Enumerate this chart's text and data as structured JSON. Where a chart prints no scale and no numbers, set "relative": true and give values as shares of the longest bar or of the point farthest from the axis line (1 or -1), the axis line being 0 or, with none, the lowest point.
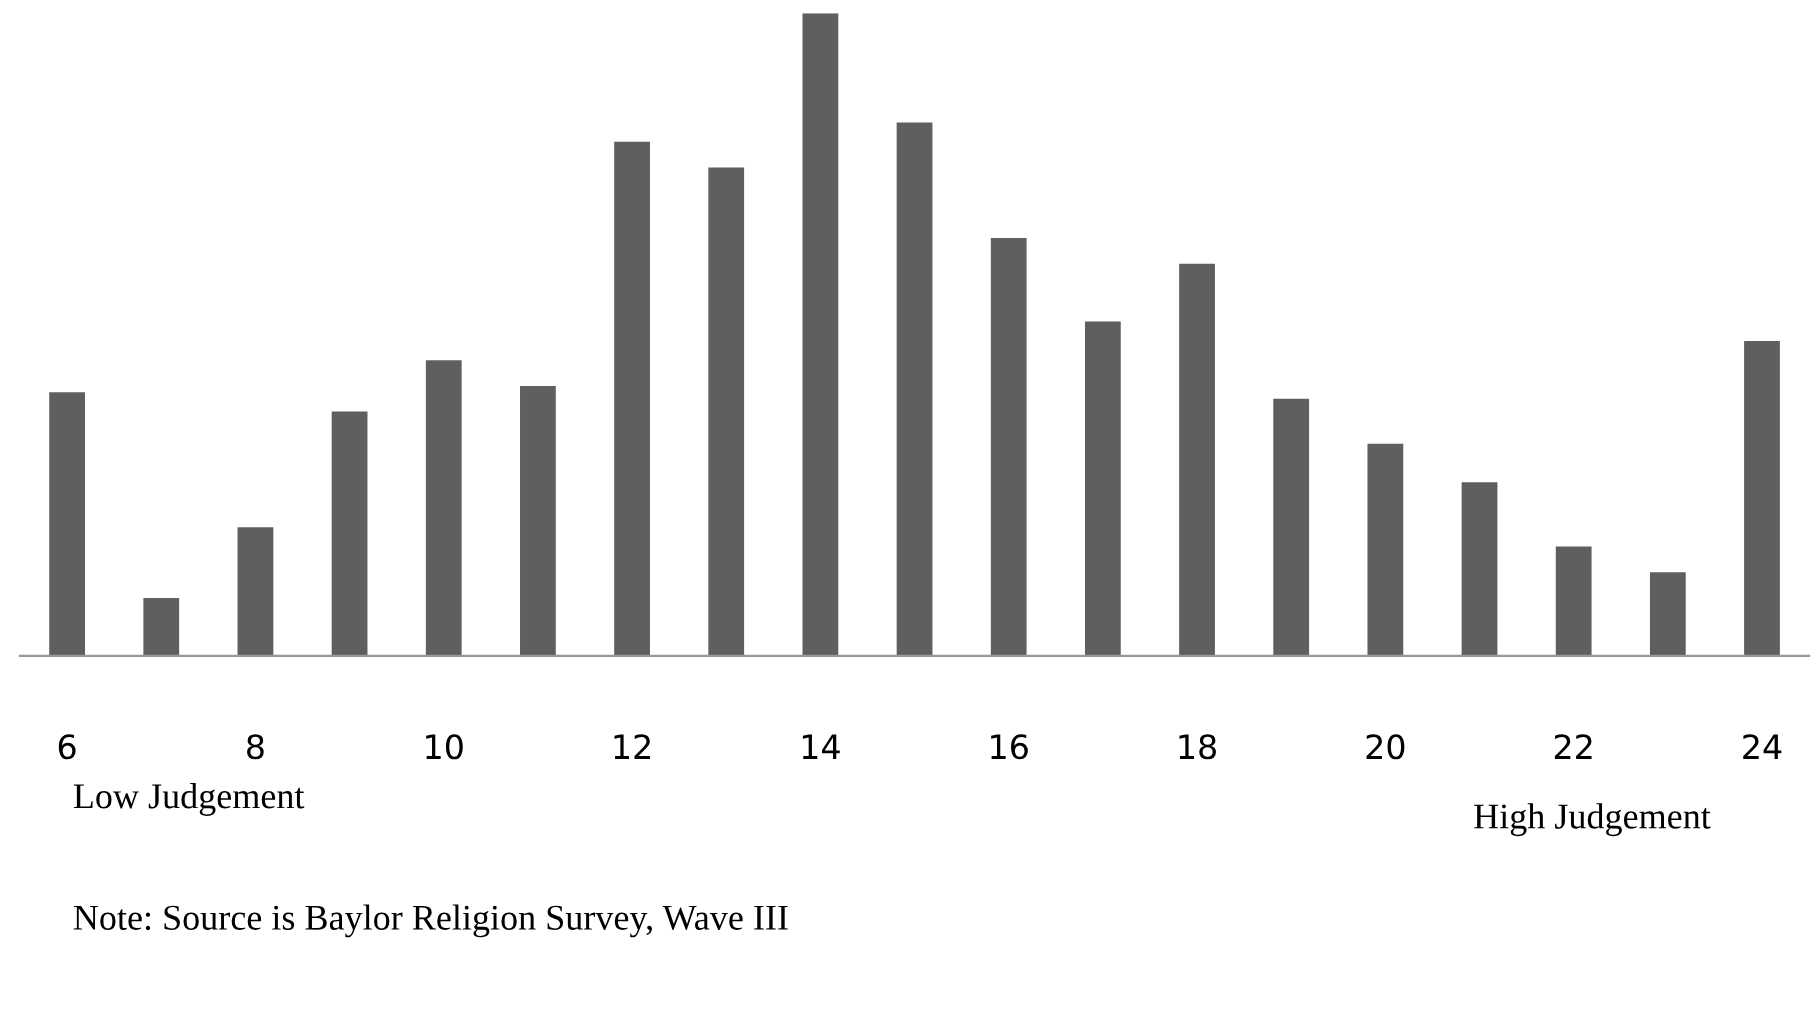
{
  "chart_data": {
    "type": "bar",
    "relative": true,
    "categories": [
      "6",
      null,
      "8",
      null,
      "10",
      null,
      "12",
      null,
      "14",
      null,
      "16",
      null,
      "18",
      null,
      "20",
      null,
      "22",
      null,
      "24"
    ],
    "values": [
      0.41,
      0.09,
      0.2,
      0.38,
      0.46,
      0.42,
      0.8,
      0.76,
      1,
      0.83,
      0.65,
      0.52,
      0.61,
      0.4,
      0.33,
      0.27,
      0.17,
      0.13,
      0.49
    ],
    "color": "#5f5f5f",
    "annotations": [
      "Low Judgement",
      "High Judgement",
      "Note: Source is Baylor Religion Survey, Wave III"
    ]
  }
}
